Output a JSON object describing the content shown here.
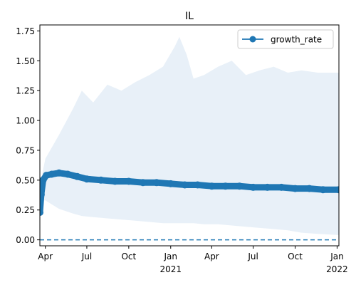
{
  "chart_data": {
    "type": "line",
    "title": "IL",
    "xlabel": "",
    "ylabel": "",
    "legend_position": "upper-right",
    "colors": {
      "series": "#1f77b4",
      "band": "#e8f0f8",
      "zero_line": "#1f77b4",
      "axis": "#000000"
    },
    "x_range": [
      "2020-03-20",
      "2022-01-05"
    ],
    "ylim": [
      -0.05,
      1.8
    ],
    "y_ticks": [
      0.0,
      0.25,
      0.5,
      0.75,
      1.0,
      1.25,
      1.5,
      1.75
    ],
    "y_tick_labels": [
      "0.00",
      "0.25",
      "0.50",
      "0.75",
      "1.00",
      "1.25",
      "1.50",
      "1.75"
    ],
    "x_ticks": [
      {
        "date": "2020-04-01",
        "label": "Apr",
        "sublabel": ""
      },
      {
        "date": "2020-07-01",
        "label": "Jul",
        "sublabel": ""
      },
      {
        "date": "2020-10-01",
        "label": "Oct",
        "sublabel": ""
      },
      {
        "date": "2021-01-01",
        "label": "Jan",
        "sublabel": "2021"
      },
      {
        "date": "2021-04-01",
        "label": "Apr",
        "sublabel": ""
      },
      {
        "date": "2021-07-01",
        "label": "Jul",
        "sublabel": ""
      },
      {
        "date": "2021-10-01",
        "label": "Oct",
        "sublabel": ""
      },
      {
        "date": "2022-01-01",
        "label": "Jan",
        "sublabel": "2022"
      }
    ],
    "reference_line": {
      "y": 0.0,
      "style": "dashed"
    },
    "series": [
      {
        "name": "growth_rate",
        "marker": "circle",
        "points": [
          {
            "x": "2020-03-20",
            "y": 0.23
          },
          {
            "x": "2020-03-23",
            "y": 0.38
          },
          {
            "x": "2020-03-27",
            "y": 0.5
          },
          {
            "x": "2020-04-03",
            "y": 0.54
          },
          {
            "x": "2020-04-15",
            "y": 0.55
          },
          {
            "x": "2020-05-01",
            "y": 0.56
          },
          {
            "x": "2020-05-20",
            "y": 0.55
          },
          {
            "x": "2020-06-10",
            "y": 0.53
          },
          {
            "x": "2020-07-01",
            "y": 0.51
          },
          {
            "x": "2020-08-01",
            "y": 0.5
          },
          {
            "x": "2020-09-01",
            "y": 0.49
          },
          {
            "x": "2020-10-01",
            "y": 0.49
          },
          {
            "x": "2020-11-01",
            "y": 0.48
          },
          {
            "x": "2020-12-01",
            "y": 0.48
          },
          {
            "x": "2021-01-01",
            "y": 0.47
          },
          {
            "x": "2021-02-01",
            "y": 0.46
          },
          {
            "x": "2021-03-01",
            "y": 0.46
          },
          {
            "x": "2021-04-01",
            "y": 0.45
          },
          {
            "x": "2021-05-01",
            "y": 0.45
          },
          {
            "x": "2021-06-01",
            "y": 0.45
          },
          {
            "x": "2021-07-01",
            "y": 0.44
          },
          {
            "x": "2021-08-01",
            "y": 0.44
          },
          {
            "x": "2021-09-01",
            "y": 0.44
          },
          {
            "x": "2021-10-01",
            "y": 0.43
          },
          {
            "x": "2021-11-01",
            "y": 0.43
          },
          {
            "x": "2021-12-01",
            "y": 0.42
          },
          {
            "x": "2022-01-05",
            "y": 0.42
          }
        ]
      }
    ],
    "band": {
      "points": [
        {
          "x": "2020-03-20",
          "low": 0.2,
          "high": 0.3
        },
        {
          "x": "2020-03-25",
          "low": 0.33,
          "high": 0.55
        },
        {
          "x": "2020-04-01",
          "low": 0.33,
          "high": 0.68
        },
        {
          "x": "2020-05-01",
          "low": 0.26,
          "high": 0.88
        },
        {
          "x": "2020-06-01",
          "low": 0.22,
          "high": 1.1
        },
        {
          "x": "2020-06-20",
          "low": 0.2,
          "high": 1.25
        },
        {
          "x": "2020-07-15",
          "low": 0.19,
          "high": 1.15
        },
        {
          "x": "2020-08-15",
          "low": 0.18,
          "high": 1.3
        },
        {
          "x": "2020-09-15",
          "low": 0.17,
          "high": 1.25
        },
        {
          "x": "2020-10-15",
          "low": 0.16,
          "high": 1.32
        },
        {
          "x": "2020-11-15",
          "low": 0.15,
          "high": 1.38
        },
        {
          "x": "2020-12-15",
          "low": 0.14,
          "high": 1.45
        },
        {
          "x": "2021-01-10",
          "low": 0.14,
          "high": 1.62
        },
        {
          "x": "2021-01-20",
          "low": 0.14,
          "high": 1.7
        },
        {
          "x": "2021-02-05",
          "low": 0.14,
          "high": 1.55
        },
        {
          "x": "2021-02-20",
          "low": 0.14,
          "high": 1.35
        },
        {
          "x": "2021-03-15",
          "low": 0.13,
          "high": 1.38
        },
        {
          "x": "2021-04-15",
          "low": 0.13,
          "high": 1.45
        },
        {
          "x": "2021-05-15",
          "low": 0.12,
          "high": 1.5
        },
        {
          "x": "2021-06-15",
          "low": 0.11,
          "high": 1.38
        },
        {
          "x": "2021-07-15",
          "low": 0.1,
          "high": 1.42
        },
        {
          "x": "2021-08-15",
          "low": 0.09,
          "high": 1.45
        },
        {
          "x": "2021-09-15",
          "low": 0.08,
          "high": 1.4
        },
        {
          "x": "2021-10-15",
          "low": 0.06,
          "high": 1.42
        },
        {
          "x": "2021-11-20",
          "low": 0.05,
          "high": 1.4
        },
        {
          "x": "2022-01-05",
          "low": 0.04,
          "high": 1.4
        }
      ]
    }
  }
}
